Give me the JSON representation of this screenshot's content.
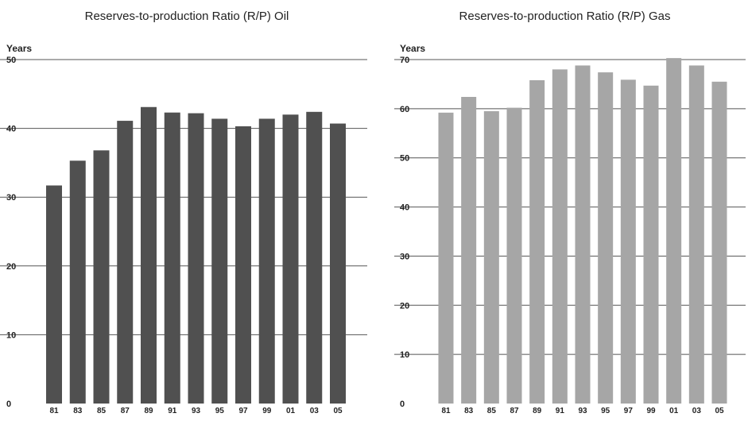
{
  "chart_data": [
    {
      "type": "bar",
      "title": "Reserves-to-production Ratio (R/P) Oil",
      "ylabel": "Years",
      "xlabel": "",
      "ylim": [
        0,
        50
      ],
      "yticks": [
        0,
        10,
        20,
        30,
        40,
        50
      ],
      "grid": true,
      "bar_color": "#505050",
      "categories": [
        "81",
        "83",
        "85",
        "87",
        "89",
        "91",
        "93",
        "95",
        "97",
        "99",
        "01",
        "03",
        "05"
      ],
      "values": [
        31.7,
        35.3,
        36.8,
        41.1,
        43.1,
        42.3,
        42.2,
        41.4,
        40.3,
        41.4,
        42.0,
        42.4,
        40.7
      ]
    },
    {
      "type": "bar",
      "title": "Reserves-to-production Ratio (R/P) Gas",
      "ylabel": "Years",
      "xlabel": "",
      "ylim": [
        0,
        70
      ],
      "yticks": [
        0,
        10,
        20,
        30,
        40,
        50,
        60,
        70
      ],
      "grid": true,
      "bar_color": "#a6a6a6",
      "categories": [
        "81",
        "83",
        "85",
        "87",
        "89",
        "91",
        "93",
        "95",
        "97",
        "99",
        "01",
        "03",
        "05"
      ],
      "values": [
        59.2,
        62.4,
        59.5,
        60.2,
        65.8,
        68.0,
        68.8,
        67.4,
        65.9,
        64.7,
        70.3,
        68.8,
        65.5
      ]
    }
  ]
}
